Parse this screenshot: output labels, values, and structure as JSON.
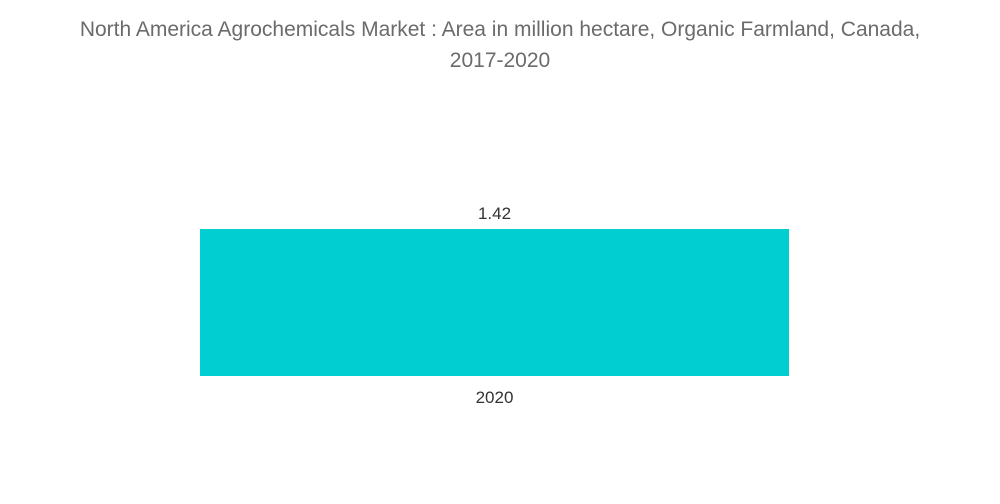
{
  "chart_data": {
    "type": "bar",
    "title_line1": "North America Agrochemicals Market : Area in million hectare, Organic Farmland, Canada,",
    "title_line2": "2017-2020",
    "categories": [
      "2020"
    ],
    "values": [
      1.42
    ],
    "data_labels": [
      "1.42"
    ],
    "xlabel": "",
    "ylabel": "",
    "ylim": [
      0,
      1.42
    ],
    "grid": false,
    "legend": "none",
    "bar_color": "#00ced1"
  }
}
